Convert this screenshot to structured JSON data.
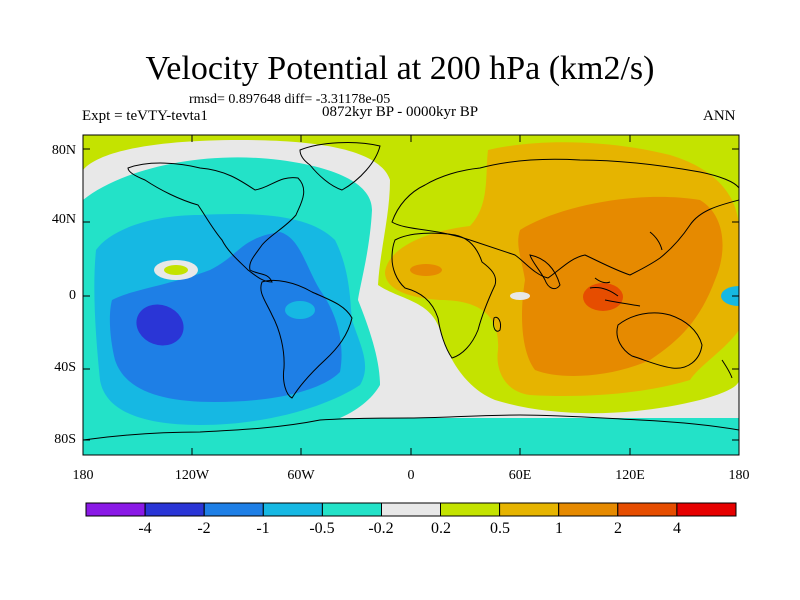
{
  "title": "Velocity Potential at 200 hPa (km2/s)",
  "stats": "rmsd= 0.897648 diff= -3.31178e-05",
  "experiment": "Expt = teVTY-tevta1",
  "period": "0872kyr BP - 0000kyr BP",
  "season": "ANN",
  "lat_ticks": [
    "80N",
    "40N",
    "0",
    "40S",
    "80S"
  ],
  "lon_ticks": [
    "180",
    "120W",
    "60W",
    "0",
    "60E",
    "120E",
    "180"
  ],
  "colorbar": {
    "labels": [
      "-4",
      "-2",
      "-1",
      "-0.5",
      "-0.2",
      "0.2",
      "0.5",
      "1",
      "2",
      "4"
    ],
    "colors": [
      "#8a19e6",
      "#2a35d6",
      "#1e7fe6",
      "#16b8e3",
      "#23e2c8",
      "#e8e8e8",
      "#c4e300",
      "#e6b400",
      "#e68a00",
      "#e64d00",
      "#e60000"
    ]
  },
  "colors": {
    "ocean_default": "#c4e300",
    "land_outline": "#000000"
  }
}
